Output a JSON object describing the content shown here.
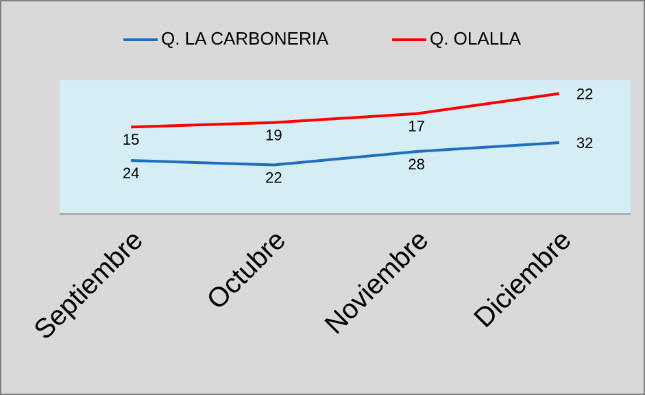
{
  "chart_data": {
    "type": "line",
    "stacked": true,
    "categories": [
      "Septiembre",
      "Octubre",
      "Noviembre",
      "Diciembre"
    ],
    "series": [
      {
        "name": "Q. LA CARBONERIA",
        "color": "#1f6fc0",
        "values": [
          24,
          22,
          28,
          32
        ]
      },
      {
        "name": "Q. OLALLA",
        "color": "#ff0000",
        "values": [
          15,
          19,
          17,
          22
        ]
      }
    ],
    "ylim": [
      0,
      60
    ],
    "legend": "top"
  }
}
